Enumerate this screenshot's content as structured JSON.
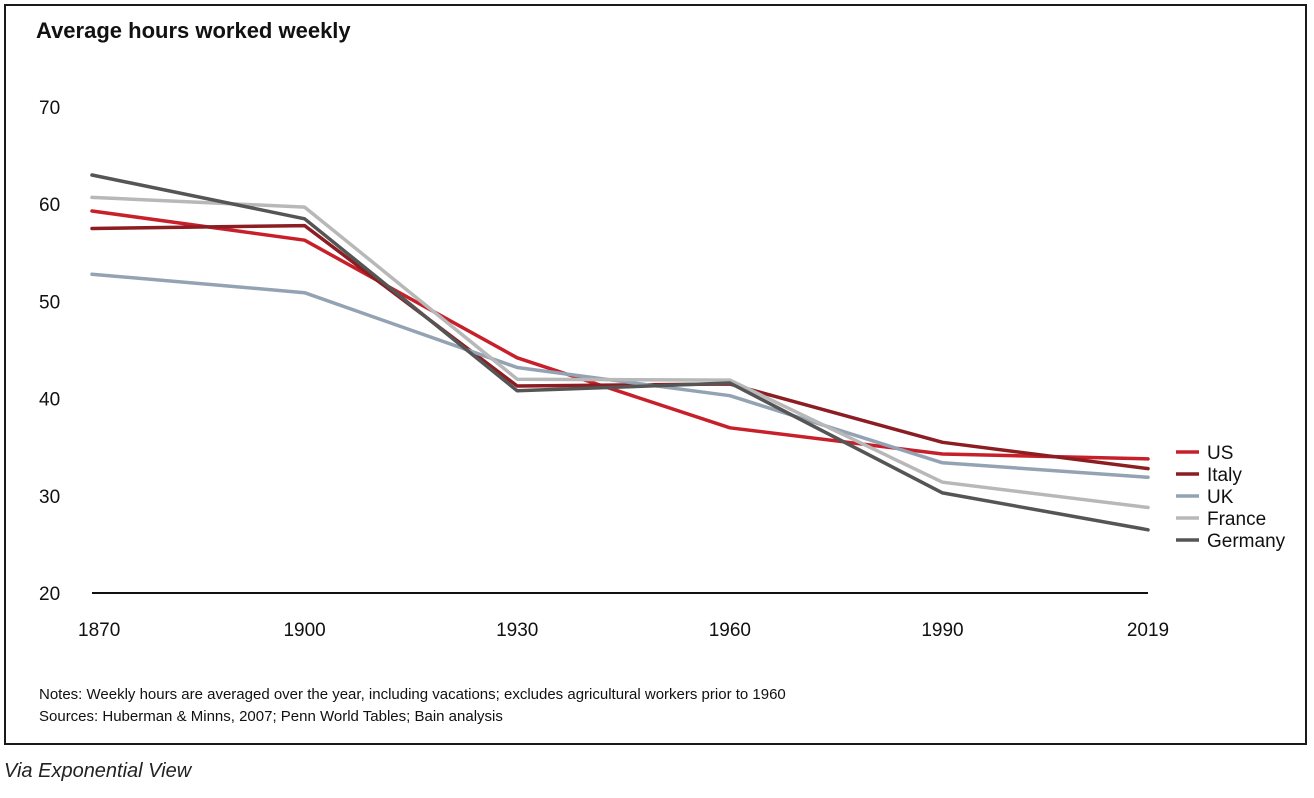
{
  "title": "Average hours worked weekly",
  "notes": {
    "line1": "Notes: Weekly hours are averaged over the year, including vacations; excludes agricultural workers prior to 1960",
    "line2": "Sources: Huberman & Minns, 2007; Penn World Tables; Bain analysis"
  },
  "caption": "Via Exponential View",
  "chart_data": {
    "type": "line",
    "title": "Average hours worked weekly",
    "x": [
      1870,
      1900,
      1930,
      1960,
      1990,
      2019
    ],
    "x_tick_labels": [
      "1870",
      "1900",
      "1930",
      "1960",
      "1990",
      "2019"
    ],
    "y_ticks": [
      20,
      30,
      40,
      50,
      60,
      70
    ],
    "ylim": [
      20,
      70
    ],
    "grid": false,
    "legend_position": "right",
    "series": [
      {
        "name": "US",
        "color": "#c8202b",
        "values": [
          59.3,
          56.3,
          44.2,
          37.0,
          34.3,
          33.8
        ]
      },
      {
        "name": "Italy",
        "color": "#8c1d22",
        "values": [
          57.5,
          57.8,
          41.3,
          41.5,
          35.5,
          32.8
        ]
      },
      {
        "name": "UK",
        "color": "#93a3b3",
        "values": [
          52.8,
          50.9,
          43.2,
          40.3,
          33.4,
          31.9
        ]
      },
      {
        "name": "France",
        "color": "#b8b8b8",
        "values": [
          60.7,
          59.7,
          42.0,
          41.9,
          31.4,
          28.8
        ]
      },
      {
        "name": "Germany",
        "color": "#555555",
        "values": [
          63.0,
          58.5,
          40.8,
          41.6,
          30.3,
          26.5
        ]
      }
    ]
  }
}
